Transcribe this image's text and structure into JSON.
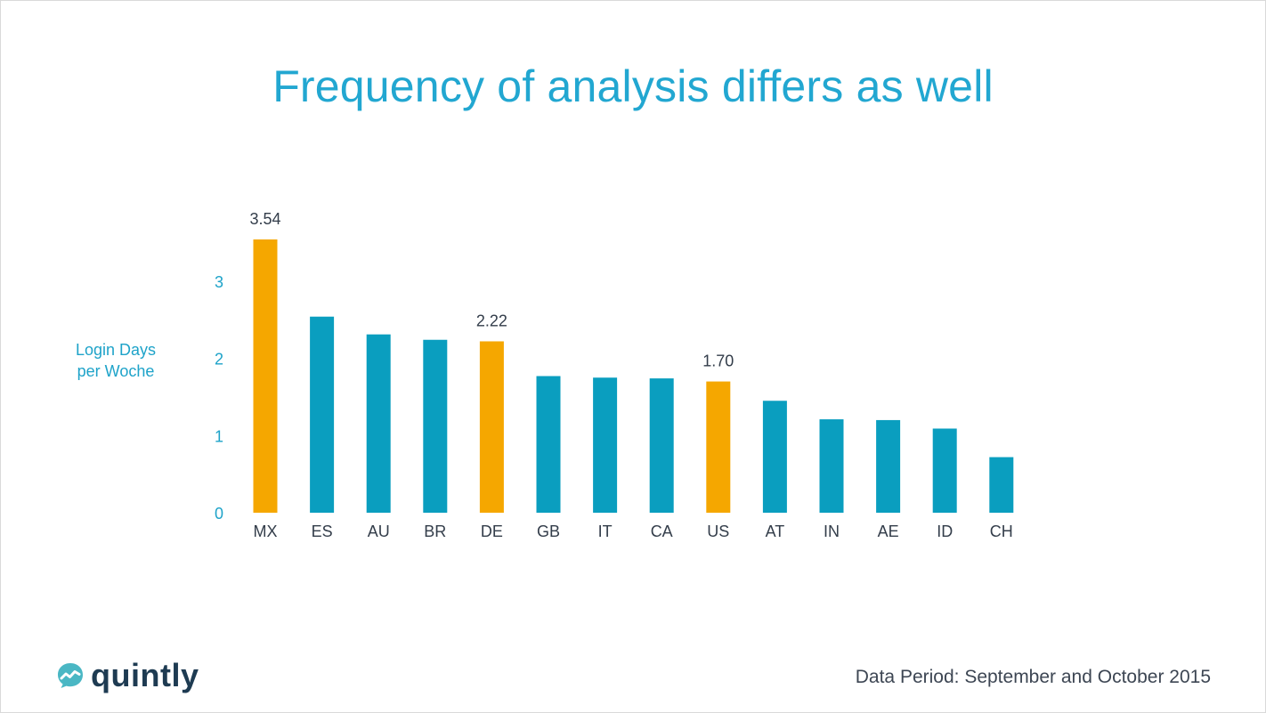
{
  "title": "Frequency of analysis differs as well",
  "ylabel_line1": "Login Days",
  "ylabel_line2": "per Woche",
  "footnote": "Data Period: September and October 2015",
  "logo": {
    "text": "quintly",
    "icon": "quintly-logo-icon"
  },
  "colors": {
    "title": "#22a7d1",
    "bar": "#0a9ebf",
    "highlight": "#f5a700",
    "axis_tick": "#1ea3c9",
    "label": "#333d4a"
  },
  "chart_data": {
    "type": "bar",
    "title": "Frequency of analysis differs as well",
    "xlabel": "",
    "ylabel": "Login Days per Woche",
    "ylim": [
      0,
      3.54
    ],
    "yticks": [
      0,
      1,
      2,
      3
    ],
    "categories": [
      "MX",
      "ES",
      "AU",
      "BR",
      "DE",
      "GB",
      "IT",
      "CA",
      "US",
      "AT",
      "IN",
      "AE",
      "ID",
      "CH"
    ],
    "values": [
      3.54,
      2.54,
      2.31,
      2.24,
      2.22,
      1.77,
      1.75,
      1.74,
      1.7,
      1.45,
      1.21,
      1.2,
      1.09,
      0.72
    ],
    "highlighted": [
      "MX",
      "DE",
      "US"
    ],
    "data_labels": {
      "MX": "3.54",
      "DE": "2.22",
      "US": "1.70"
    },
    "grid": false,
    "legend": "none"
  }
}
